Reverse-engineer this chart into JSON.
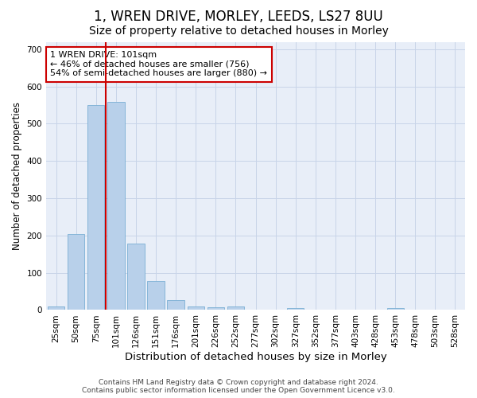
{
  "title1": "1, WREN DRIVE, MORLEY, LEEDS, LS27 8UU",
  "title2": "Size of property relative to detached houses in Morley",
  "xlabel": "Distribution of detached houses by size in Morley",
  "ylabel": "Number of detached properties",
  "categories": [
    "25sqm",
    "50sqm",
    "75sqm",
    "101sqm",
    "126sqm",
    "151sqm",
    "176sqm",
    "201sqm",
    "226sqm",
    "252sqm",
    "277sqm",
    "302sqm",
    "327sqm",
    "352sqm",
    "377sqm",
    "403sqm",
    "428sqm",
    "453sqm",
    "478sqm",
    "503sqm",
    "528sqm"
  ],
  "values": [
    10,
    204,
    550,
    558,
    178,
    77,
    27,
    10,
    7,
    10,
    0,
    0,
    5,
    2,
    0,
    0,
    0,
    5,
    0,
    0,
    0
  ],
  "bar_color": "#b8d0ea",
  "bar_edge_color": "#7aafd4",
  "vline_color": "#cc0000",
  "annotation_text": "1 WREN DRIVE: 101sqm\n← 46% of detached houses are smaller (756)\n54% of semi-detached houses are larger (880) →",
  "annotation_box_color": "#ffffff",
  "annotation_border_color": "#cc0000",
  "ylim": [
    0,
    720
  ],
  "yticks": [
    0,
    100,
    200,
    300,
    400,
    500,
    600,
    700
  ],
  "grid_color": "#c8d4e8",
  "background_color": "#e8eef8",
  "fig_background": "#ffffff",
  "footer1": "Contains HM Land Registry data © Crown copyright and database right 2024.",
  "footer2": "Contains public sector information licensed under the Open Government Licence v3.0.",
  "title1_fontsize": 12,
  "title2_fontsize": 10,
  "xlabel_fontsize": 9.5,
  "ylabel_fontsize": 8.5,
  "tick_fontsize": 7.5,
  "annotation_fontsize": 8,
  "footer_fontsize": 6.5
}
